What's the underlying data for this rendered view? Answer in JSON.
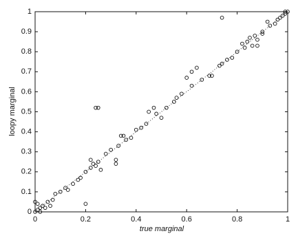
{
  "chart_data": {
    "type": "scatter",
    "x_label": "true marginal",
    "y_label": "loopy marginal",
    "xlim": [
      0,
      1
    ],
    "ylim": [
      0,
      1
    ],
    "xticks": [
      0,
      0.2,
      0.4,
      0.6,
      0.8,
      1
    ],
    "yticks": [
      0,
      0.1,
      0.2,
      0.3,
      0.4,
      0.5,
      0.6,
      0.7,
      0.8,
      0.9,
      1
    ],
    "diagonal": true,
    "color": "#111111",
    "x": [
      0,
      0.01,
      0.02,
      0,
      0.01,
      0.03,
      0.05,
      0.07,
      0.1,
      0.12,
      0.15,
      0.17,
      0.2,
      0.22,
      0.22,
      0.23,
      0.25,
      0.24,
      0.26,
      0.28,
      0.3,
      0.32,
      0.32,
      0.33,
      0.34,
      0.35,
      0.36,
      0.38,
      0.4,
      0.42,
      0.44,
      0.45,
      0.47,
      0.48,
      0.5,
      0.52,
      0.55,
      0.56,
      0.58,
      0.6,
      0.62,
      0.62,
      0.64,
      0.66,
      0.69,
      0.7,
      0.73,
      0.74,
      0.74,
      0.76,
      0.78,
      0.8,
      0.82,
      0.83,
      0.84,
      0.85,
      0.86,
      0.87,
      0.88,
      0.88,
      0.9,
      0.9,
      0.92,
      0.93,
      0.95,
      0.96,
      0.97,
      0.98,
      0.99,
      1,
      0.99,
      0.13,
      0.18,
      0.08,
      0.04,
      0.02,
      0.06,
      0.2,
      0.24,
      0.25
    ],
    "y": [
      0,
      0.01,
      0.02,
      0.05,
      0.04,
      0.03,
      0.05,
      0.06,
      0.1,
      0.12,
      0.14,
      0.16,
      0.2,
      0.22,
      0.26,
      0.24,
      0.25,
      0.23,
      0.21,
      0.29,
      0.31,
      0.26,
      0.24,
      0.33,
      0.38,
      0.38,
      0.36,
      0.37,
      0.41,
      0.42,
      0.44,
      0.5,
      0.52,
      0.49,
      0.47,
      0.52,
      0.55,
      0.57,
      0.59,
      0.67,
      0.7,
      0.63,
      0.72,
      0.66,
      0.68,
      0.68,
      0.73,
      0.74,
      0.97,
      0.76,
      0.77,
      0.8,
      0.84,
      0.82,
      0.85,
      0.87,
      0.83,
      0.88,
      0.86,
      0.83,
      0.9,
      0.89,
      0.95,
      0.93,
      0.94,
      0.96,
      0.97,
      0.98,
      0.99,
      1,
      1,
      0.11,
      0.17,
      0.09,
      0.02,
      0,
      0.03,
      0.04,
      0.52,
      0.52
    ]
  }
}
